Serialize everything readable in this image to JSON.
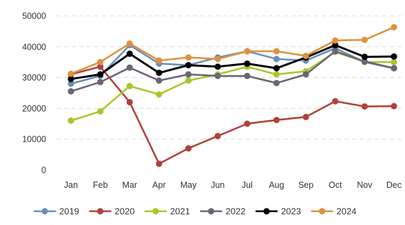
{
  "chart_data": {
    "type": "line",
    "categories": [
      "Jan",
      "Feb",
      "Mar",
      "Apr",
      "May",
      "Jun",
      "Jul",
      "Aug",
      "Sep",
      "Oct",
      "Nov",
      "Dec"
    ],
    "ylim": [
      0,
      50000
    ],
    "yticks": [
      0,
      10000,
      20000,
      30000,
      40000,
      50000
    ],
    "grid": true,
    "legend_position": "bottom",
    "series": [
      {
        "name": "2019",
        "color": "#6a8fb8",
        "values": [
          28000,
          30500,
          40500,
          34500,
          34000,
          36500,
          38500,
          36000,
          35500,
          39500,
          35000,
          33000
        ]
      },
      {
        "name": "2020",
        "color": "#b3413a",
        "values": [
          31000,
          33500,
          22000,
          2000,
          7000,
          11000,
          15000,
          16200,
          17200,
          22300,
          20600,
          20700
        ]
      },
      {
        "name": "2021",
        "color": "#a6c82a",
        "values": [
          16000,
          19000,
          27200,
          24500,
          29000,
          31000,
          33500,
          31000,
          32000,
          38300,
          35000,
          35000
        ]
      },
      {
        "name": "2022",
        "color": "#6b6575",
        "values": [
          25500,
          28500,
          33200,
          29000,
          31000,
          30500,
          30500,
          28200,
          31000,
          38500,
          35200,
          33000
        ]
      },
      {
        "name": "2023",
        "color": "#000000",
        "values": [
          29500,
          31000,
          37700,
          31500,
          34000,
          33500,
          34500,
          33000,
          36500,
          40500,
          36700,
          36800
        ]
      },
      {
        "name": "2024",
        "color": "#e0913d",
        "values": [
          31200,
          35000,
          41000,
          35500,
          36500,
          36000,
          38500,
          38500,
          37000,
          42000,
          42200,
          46300
        ]
      }
    ]
  }
}
